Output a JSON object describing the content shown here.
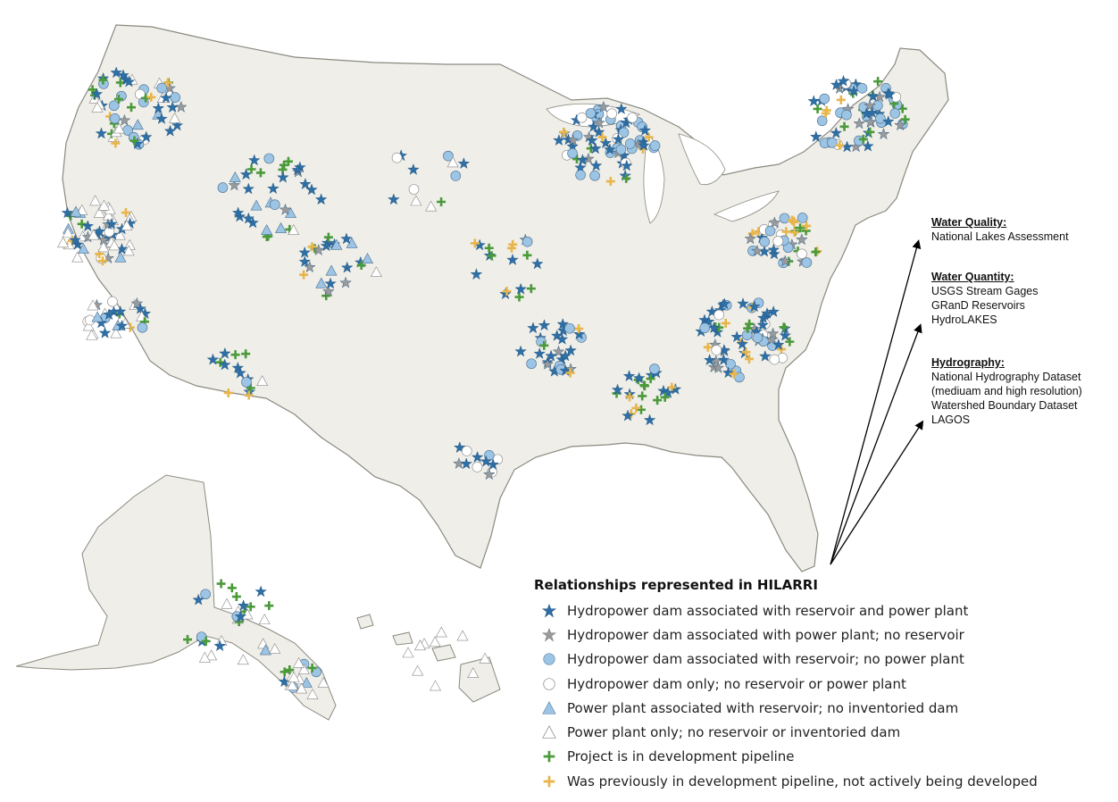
{
  "legend": {
    "title": "Relationships represented in HILARRI",
    "items": [
      {
        "key": "hd-res-pp",
        "label": "Hydropower dam associated with reservoir and power plant",
        "symbol": "star",
        "color": "#2e6fa6"
      },
      {
        "key": "hd-pp",
        "label": "Hydropower dam associated with power plant; no reservoir",
        "symbol": "star",
        "color": "#9a9a9a"
      },
      {
        "key": "hd-res",
        "label": "Hydropower dam associated with reservoir; no power plant",
        "symbol": "circle",
        "color": "#9cc4e4"
      },
      {
        "key": "hd-only",
        "label": "Hydropower dam only; no reservoir or power plant",
        "symbol": "circle",
        "color": "#ffffff"
      },
      {
        "key": "pp-res",
        "label": "Power plant associated with reservoir; no inventoried dam",
        "symbol": "triangle",
        "color": "#9cc4e4"
      },
      {
        "key": "pp-only",
        "label": "Power plant only; no reservoir or inventoried dam",
        "symbol": "triangle",
        "color": "#ffffff"
      },
      {
        "key": "dev",
        "label": "Project is in development pipeline",
        "symbol": "cross",
        "color": "#4a9a3a"
      },
      {
        "key": "prev-dev",
        "label": "Was previously in development pipeline, not actively being developed",
        "symbol": "cross",
        "color": "#e8b54a"
      }
    ]
  },
  "datasets": [
    {
      "heading": "Water Quality:",
      "lines": [
        "National Lakes Assessment"
      ]
    },
    {
      "heading": "Water Quantity:",
      "lines": [
        "USGS Stream Gages",
        "GRanD Reservoirs",
        "HydroLAKES"
      ]
    },
    {
      "heading": "Hydrography:",
      "lines": [
        "National Hydrography Dataset",
        "(mediuam and high resolution)",
        "Watershed Boundary Dataset",
        "LAGOS"
      ]
    }
  ],
  "colors": {
    "land": "#efeee8",
    "border": "#8a8a80",
    "water": "#ffffff",
    "vegetation": "#cfe2b8"
  }
}
